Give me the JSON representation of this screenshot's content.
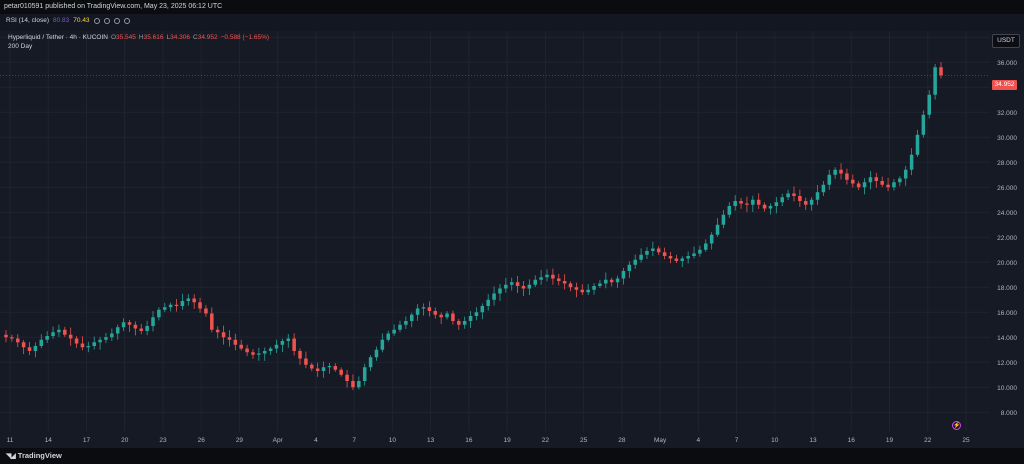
{
  "top_bar": {
    "publisher": "petar010591 published on TradingView.com, May 23, 2025 06:12 UTC"
  },
  "rsi": {
    "label": "RSI (14, close)",
    "value1": "80.83",
    "value2": "70.43"
  },
  "legend": {
    "title": "Hyperliquid / Tether · 4h · KUCOIN",
    "o_label": "O",
    "o": "35.545",
    "h_label": "H",
    "h": "35.616",
    "l_label": "L",
    "l": "34.306",
    "c_label": "C",
    "c": "34.952",
    "change": "−0.588 (−1.65%)",
    "ma": "200 Day"
  },
  "currency": "USDT",
  "last_price": "34.952",
  "footer": {
    "brand": "TradingView",
    "logo": "tradingview-logo-icon"
  },
  "colors": {
    "up": "#26a69a",
    "down": "#ef5350",
    "bg": "#161a25",
    "grid": "#1f2430",
    "text": "#b2b5be"
  },
  "chart_data": {
    "type": "candlestick",
    "interval": "4h",
    "symbol": "Hyperliquid / Tether",
    "exchange": "KUCOIN",
    "y_ticks": [
      "8.000",
      "10.000",
      "12.000",
      "14.000",
      "16.000",
      "18.000",
      "20.000",
      "22.000",
      "24.000",
      "26.000",
      "28.000",
      "30.000",
      "32.000",
      "34.000",
      "36.000",
      "38.000"
    ],
    "x_ticks": [
      "11",
      "14",
      "17",
      "20",
      "23",
      "26",
      "29",
      "Apr",
      "4",
      "7",
      "10",
      "13",
      "16",
      "19",
      "22",
      "25",
      "28",
      "May",
      "4",
      "7",
      "10",
      "13",
      "16",
      "19",
      "22",
      "25"
    ],
    "ylim": [
      6.5,
      38.5
    ],
    "last_price": 34.952,
    "closes": [
      14.0,
      13.9,
      13.6,
      13.2,
      12.9,
      13.3,
      13.8,
      14.1,
      14.4,
      14.6,
      14.2,
      13.9,
      13.5,
      13.2,
      13.3,
      13.6,
      13.8,
      14.0,
      14.3,
      14.8,
      15.2,
      15.0,
      14.7,
      14.5,
      14.9,
      15.6,
      16.2,
      16.4,
      16.6,
      16.5,
      16.9,
      17.1,
      16.8,
      16.3,
      15.9,
      14.6,
      14.4,
      14.0,
      13.8,
      13.4,
      13.1,
      12.8,
      12.6,
      12.7,
      12.9,
      13.1,
      13.4,
      13.7,
      13.9,
      12.9,
      12.3,
      11.8,
      11.5,
      11.3,
      11.6,
      11.7,
      11.4,
      11.0,
      10.5,
      10.0,
      10.5,
      11.6,
      12.4,
      13.0,
      13.8,
      14.3,
      14.6,
      15.0,
      15.3,
      15.8,
      16.3,
      16.4,
      16.1,
      15.8,
      15.6,
      15.9,
      15.3,
      15.0,
      15.3,
      15.7,
      16.0,
      16.5,
      17.0,
      17.5,
      17.9,
      18.2,
      18.4,
      18.1,
      17.9,
      18.2,
      18.6,
      18.8,
      19.0,
      18.7,
      18.5,
      18.3,
      18.0,
      17.8,
      17.6,
      17.8,
      18.1,
      18.3,
      18.6,
      18.4,
      18.7,
      19.3,
      19.8,
      20.2,
      20.6,
      20.9,
      21.1,
      20.8,
      20.5,
      20.3,
      20.1,
      20.3,
      20.5,
      20.7,
      21.0,
      21.5,
      22.2,
      23.0,
      23.8,
      24.5,
      24.9,
      24.7,
      24.6,
      25.0,
      24.6,
      24.3,
      24.5,
      24.8,
      25.2,
      25.5,
      25.3,
      24.9,
      24.6,
      25.0,
      25.6,
      26.2,
      27.0,
      27.4,
      27.1,
      26.6,
      26.3,
      26.0,
      26.4,
      26.8,
      26.5,
      26.2,
      26.0,
      26.4,
      26.7,
      27.4,
      28.6,
      30.2,
      31.8,
      33.4,
      35.6,
      34.952
    ]
  }
}
